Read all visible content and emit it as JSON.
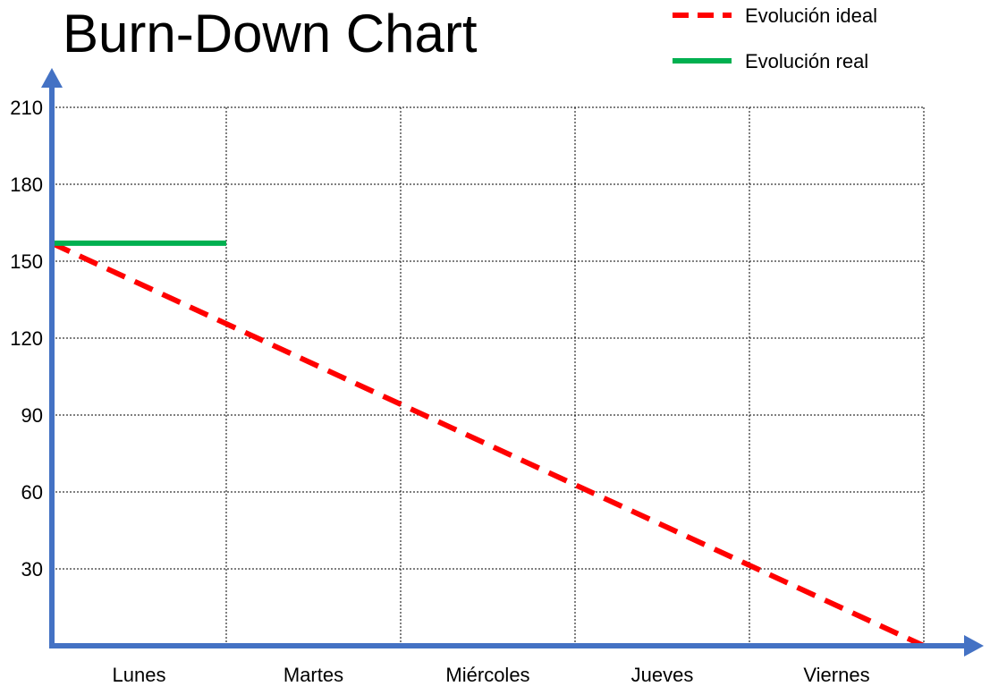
{
  "chart_data": {
    "type": "line",
    "title": "Burn-Down Chart",
    "xlabel": "",
    "ylabel": "",
    "categories": [
      "Lunes",
      "Martes",
      "Miércoles",
      "Jueves",
      "Viernes"
    ],
    "y_ticks": [
      30,
      60,
      90,
      120,
      150,
      180,
      210
    ],
    "ylim": [
      0,
      210
    ],
    "grid": true,
    "legend_position": "top-right",
    "series": [
      {
        "name": "Evolución ideal",
        "style": "dashed",
        "color": "#ff0000",
        "points": [
          [
            0,
            157
          ],
          [
            5,
            0
          ]
        ]
      },
      {
        "name": "Evolución real",
        "style": "solid",
        "color": "#00b050",
        "points": [
          [
            0,
            157
          ],
          [
            1,
            157
          ]
        ]
      }
    ],
    "axis_color": "#4472c4"
  }
}
